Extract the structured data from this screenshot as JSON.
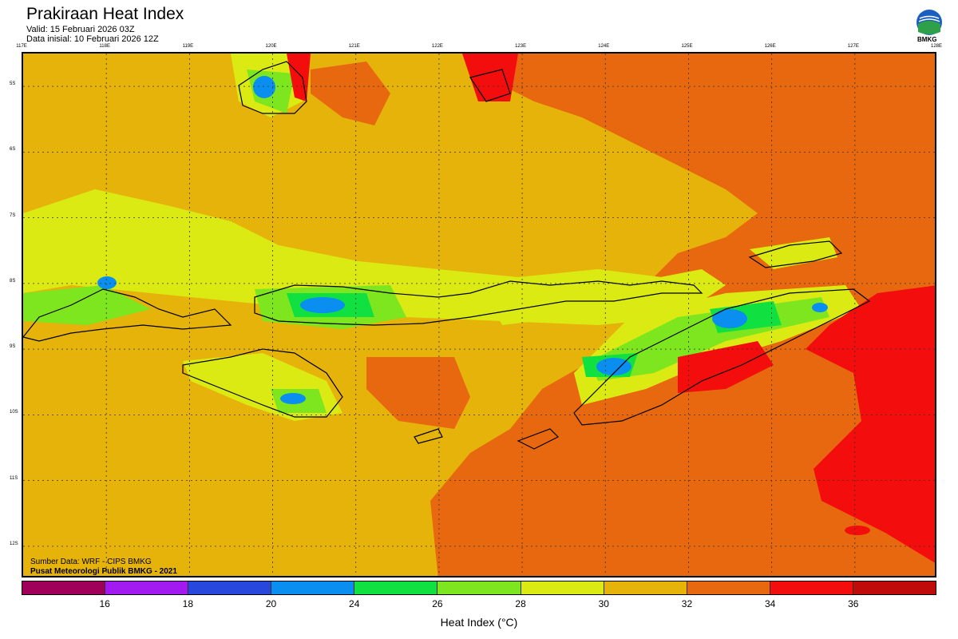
{
  "header": {
    "title": "Prakiraan Heat Index",
    "valid": "Valid: 15 Februari 2026 03Z",
    "initial": "Data inisial: 10 Februari 2026 12Z"
  },
  "logo": {
    "text": "BMKG",
    "icon": "bmkg-logo-icon"
  },
  "map": {
    "lon_labels": [
      "117E",
      "118E",
      "119E",
      "120E",
      "121E",
      "122E",
      "123E",
      "124E",
      "125E",
      "126E",
      "127E",
      "128E"
    ],
    "lat_labels": [
      "5S",
      "6S",
      "7S",
      "8S",
      "9S",
      "10S",
      "11S",
      "12S"
    ],
    "extent": {
      "lon": [
        117,
        128
      ],
      "lat": [
        -4.5,
        -12.5
      ]
    }
  },
  "credits": {
    "line1": "Sumber Data: WRF - CIPS BMKG",
    "line2": "Pusat Meteorologi Publik BMKG - 2021"
  },
  "colorbar": {
    "colors": [
      "#a1005a",
      "#a21af0",
      "#2847dc",
      "#0a8ff0",
      "#10e040",
      "#7de61e",
      "#dcea13",
      "#e6b30b",
      "#e8680f",
      "#f30d0d",
      "#c00b0b"
    ],
    "ticks": [
      "16",
      "18",
      "20",
      "24",
      "26",
      "28",
      "30",
      "32",
      "34",
      "36"
    ],
    "label": "Heat Index (°C)"
  }
}
